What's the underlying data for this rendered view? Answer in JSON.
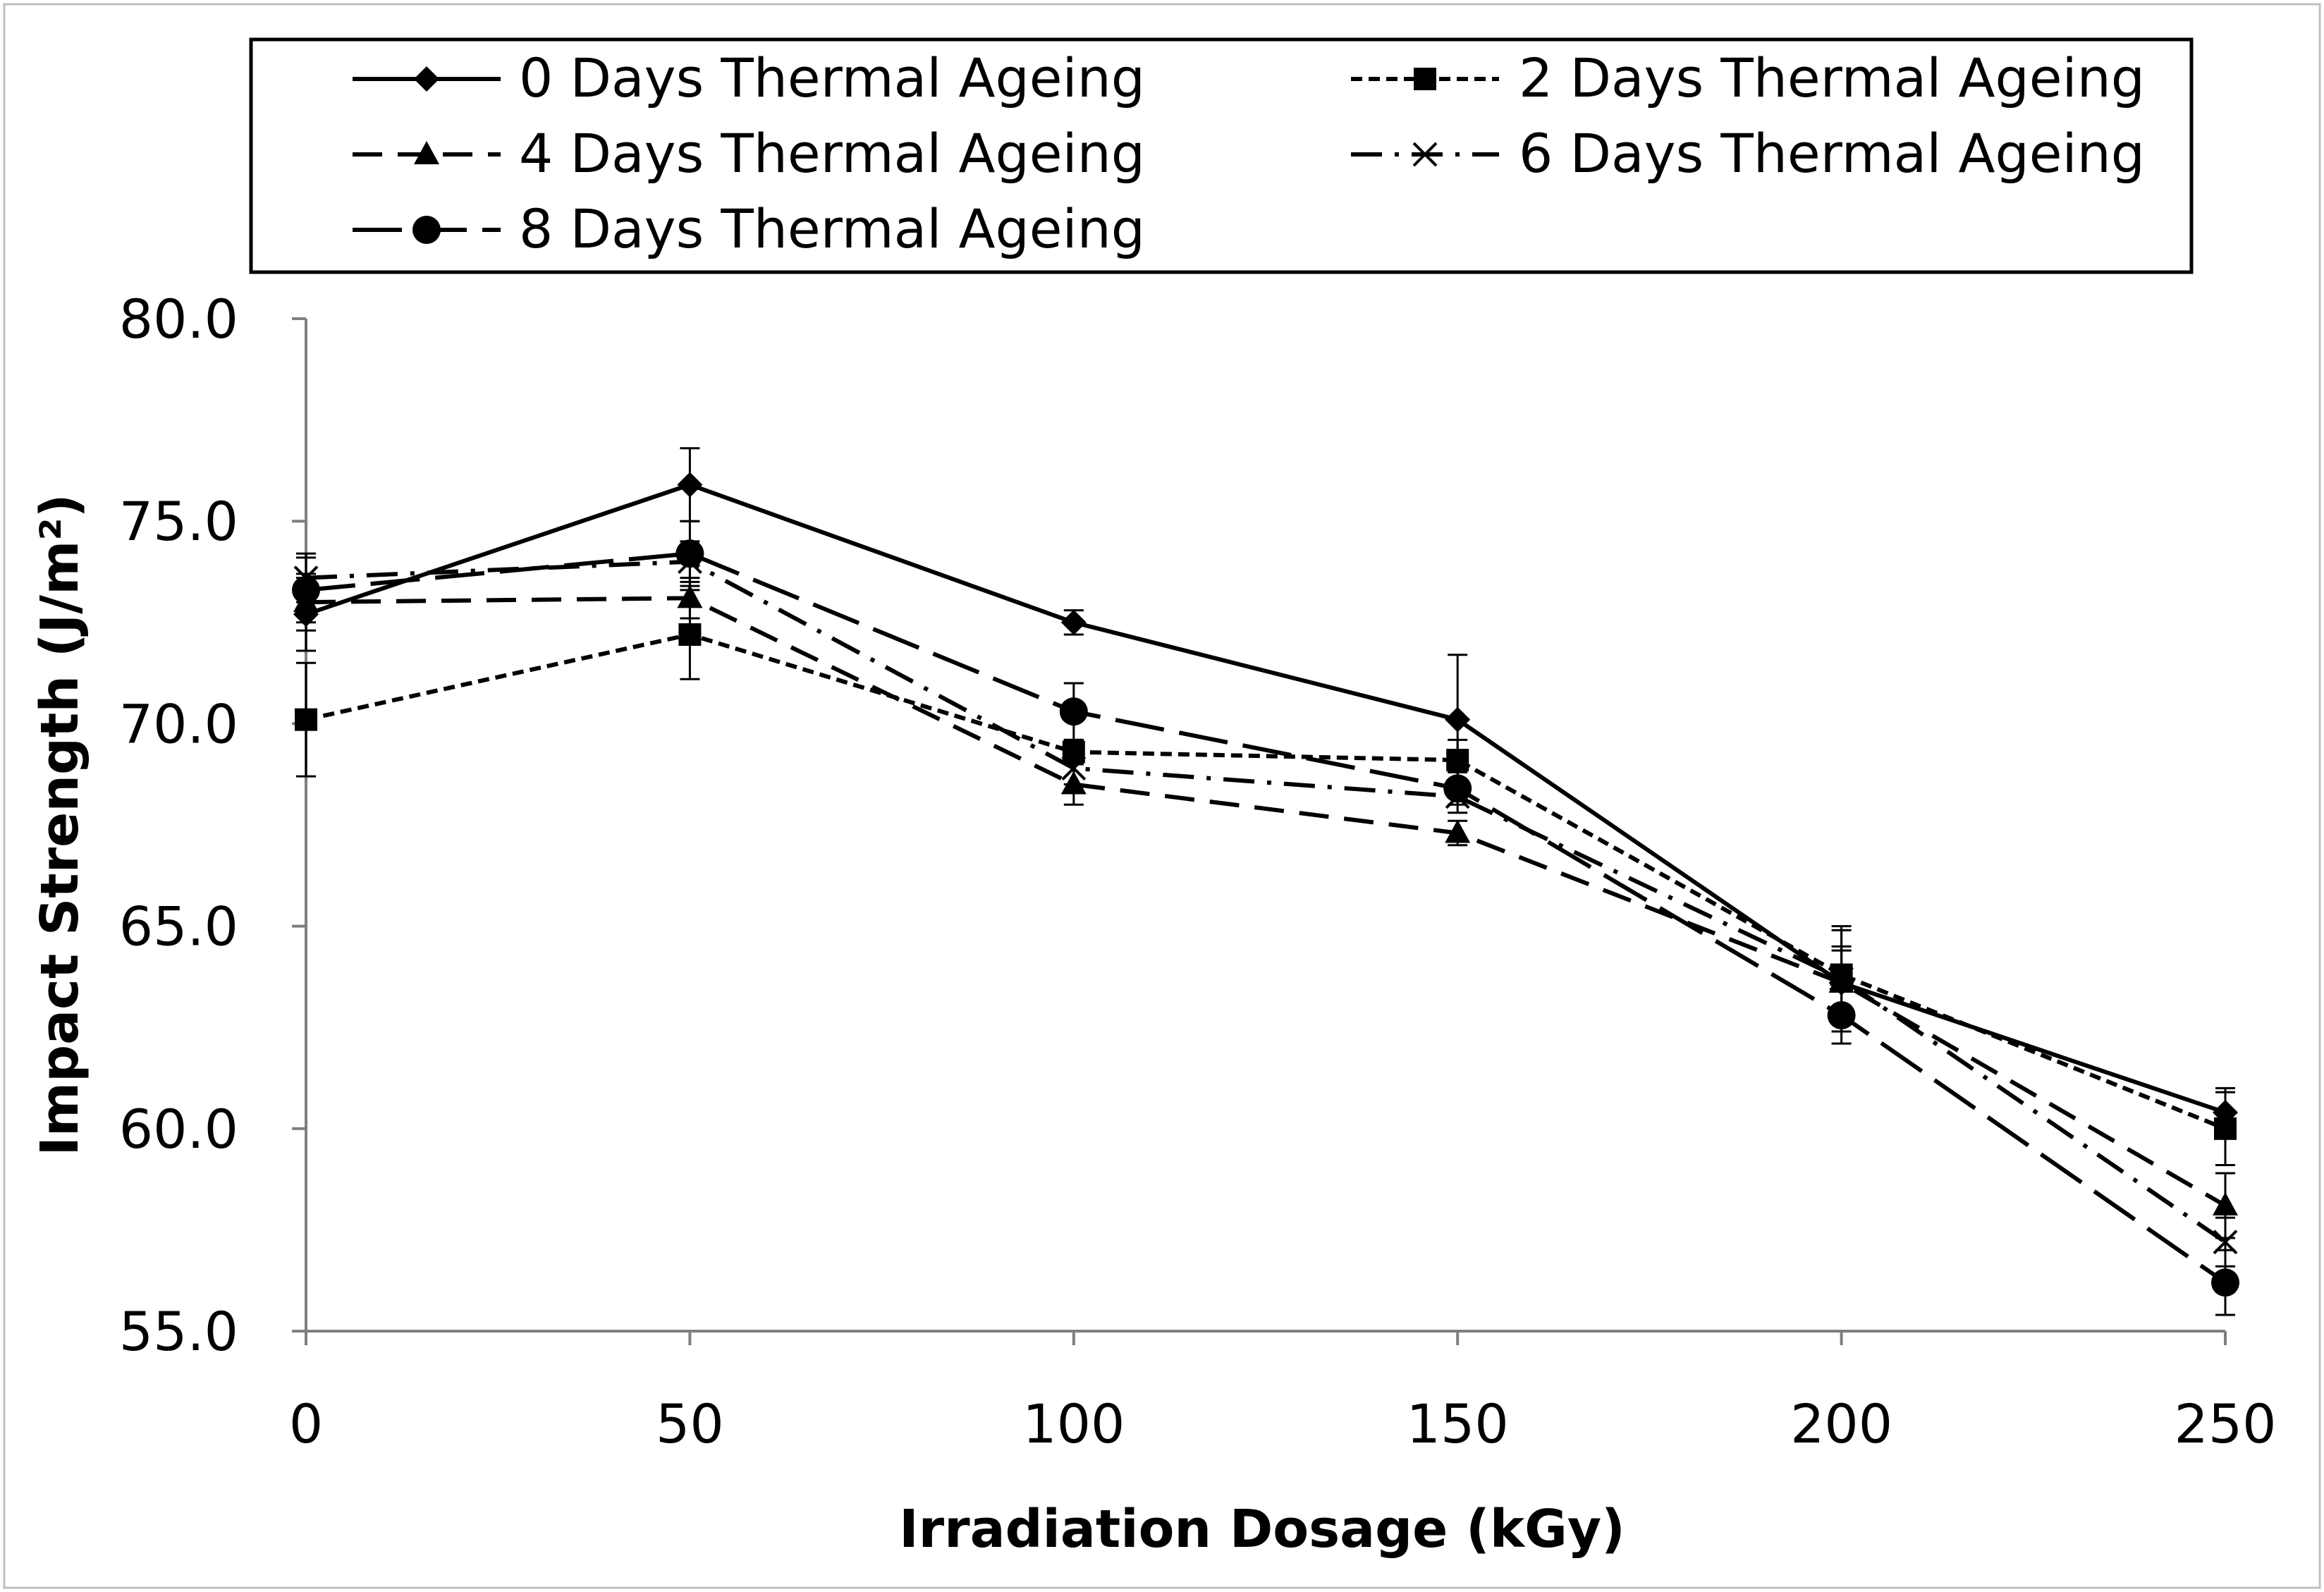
{
  "chart_data": {
    "type": "line",
    "title": "",
    "xlabel": "Irradiation Dosage (kGy)",
    "ylabel": "Impact Strength (J/m²)",
    "x": [
      0,
      50,
      100,
      150,
      200,
      250
    ],
    "x_tick_labels": [
      "0",
      "50",
      "100",
      "150",
      "200",
      "250"
    ],
    "y_tick_labels": [
      "55.0",
      "60.0",
      "65.0",
      "70.0",
      "75.0",
      "80.0"
    ],
    "ylim": [
      55,
      80
    ],
    "xlim": [
      0,
      250
    ],
    "grid": false,
    "legend_position": "top",
    "series": [
      {
        "name": "0 Days Thermal Ageing",
        "values": [
          72.7,
          75.9,
          72.5,
          70.1,
          63.6,
          60.4
        ],
        "errors": [
          0.9,
          0.9,
          0.3,
          1.6,
          0.8,
          0.6
        ],
        "marker": "diamond",
        "dash": "solid"
      },
      {
        "name": "2 Days Thermal Ageing",
        "values": [
          70.1,
          72.2,
          69.3,
          69.1,
          63.8,
          60.0
        ],
        "errors": [
          1.4,
          1.1,
          0.3,
          0.5,
          1.1,
          0.9
        ],
        "marker": "square",
        "dash": "short-dash"
      },
      {
        "name": "4 Days Thermal Ageing",
        "values": [
          73.0,
          73.1,
          68.5,
          67.3,
          63.6,
          58.1
        ],
        "errors": [
          0.7,
          0.5,
          0.5,
          0.3,
          0.9,
          0.8
        ],
        "marker": "triangle",
        "dash": "dash"
      },
      {
        "name": "6 Days Thermal Ageing",
        "values": [
          73.6,
          74.0,
          68.9,
          68.2,
          63.7,
          57.2
        ],
        "errors": [
          0.6,
          0.5,
          0.4,
          0.4,
          1.3,
          0.6
        ],
        "marker": "x",
        "dash": "dash-dot"
      },
      {
        "name": "8 Days Thermal Ageing",
        "values": [
          73.3,
          74.2,
          70.3,
          68.4,
          62.8,
          56.2
        ],
        "errors": [
          0.8,
          0.8,
          0.7,
          0.4,
          0.7,
          0.8
        ],
        "marker": "circle",
        "dash": "long-dash"
      }
    ]
  }
}
